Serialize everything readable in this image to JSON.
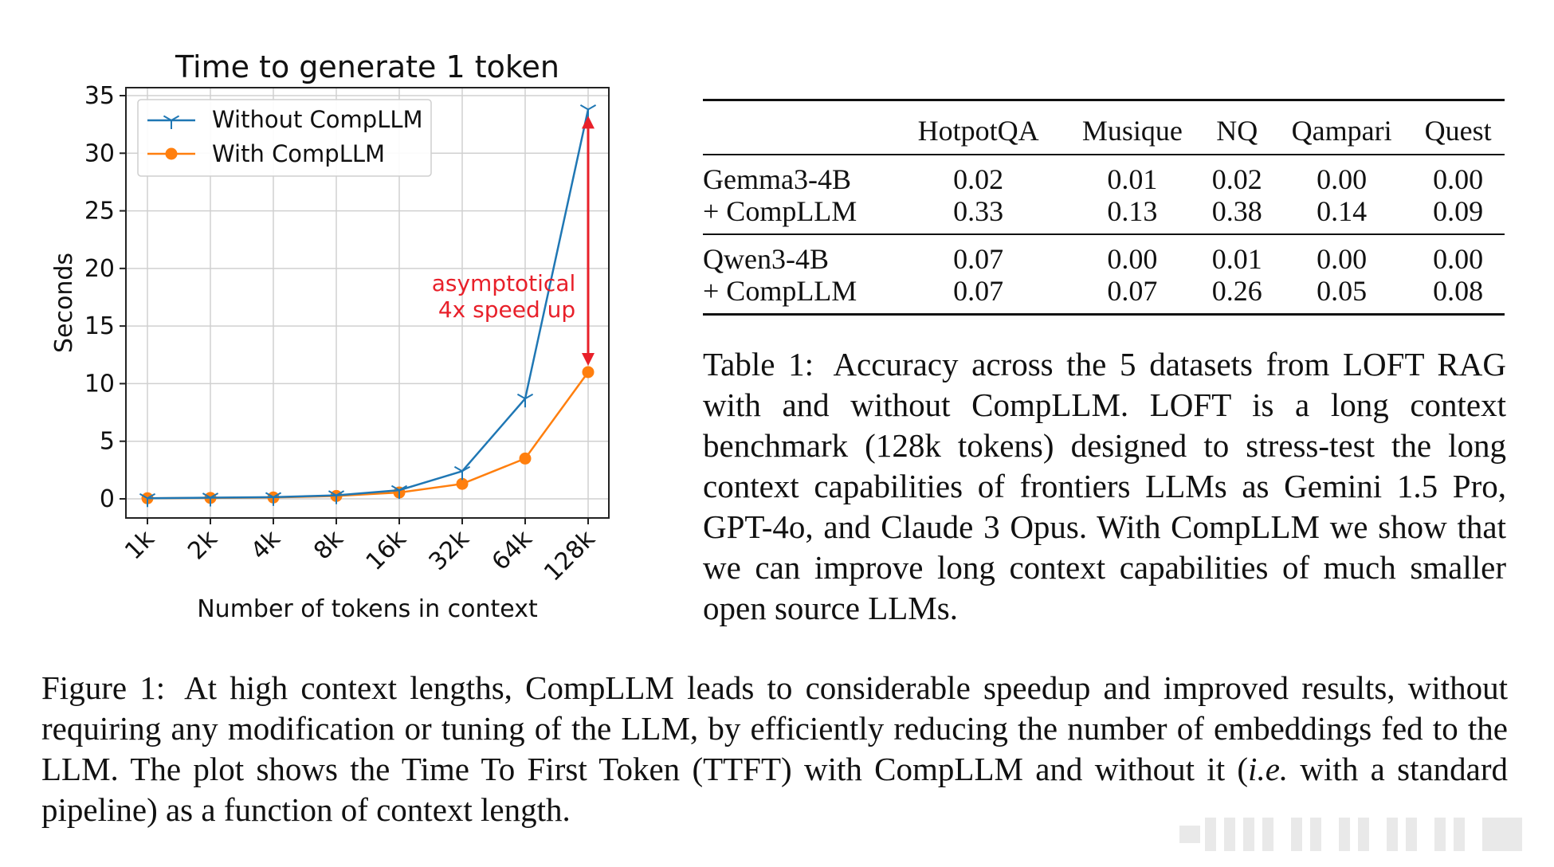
{
  "chart_data": {
    "type": "line",
    "title": "Time to generate 1 token",
    "xlabel": "Number of tokens in context",
    "ylabel": "Seconds",
    "categories": [
      "1k",
      "2k",
      "4k",
      "8k",
      "16k",
      "32k",
      "64k",
      "128k"
    ],
    "ylim": [
      0,
      35
    ],
    "yticks": [
      0,
      5,
      10,
      15,
      20,
      25,
      30,
      35
    ],
    "grid": true,
    "legend_position": "top-left",
    "series": [
      {
        "name": "Without CompLLM",
        "color": "#1f77b4",
        "marker": "tri",
        "values": [
          0.05,
          0.1,
          0.15,
          0.3,
          0.75,
          2.4,
          8.7,
          33.8
        ]
      },
      {
        "name": "With CompLLM",
        "color": "#ff7f0e",
        "marker": "circle",
        "values": [
          0.05,
          0.08,
          0.12,
          0.25,
          0.55,
          1.3,
          3.5,
          11.0
        ]
      }
    ],
    "annotation": {
      "lines": [
        "asymptotical",
        "4x speed up"
      ],
      "color": "#e8202a",
      "arrow_from": 11.0,
      "arrow_to": 33.8,
      "at_category": "128k"
    }
  },
  "table": {
    "columns": [
      "HotpotQA",
      "Musique",
      "NQ",
      "Qampari",
      "Quest"
    ],
    "groups": [
      {
        "rows": [
          {
            "model": "Gemma3-4B",
            "values": [
              "0.02",
              "0.01",
              "0.02",
              "0.00",
              "0.00"
            ]
          },
          {
            "model": "+ CompLLM",
            "values": [
              "0.33",
              "0.13",
              "0.38",
              "0.14",
              "0.09"
            ]
          }
        ]
      },
      {
        "rows": [
          {
            "model": "Qwen3-4B",
            "values": [
              "0.07",
              "0.00",
              "0.01",
              "0.00",
              "0.00"
            ]
          },
          {
            "model": "+ CompLLM",
            "values": [
              "0.07",
              "0.07",
              "0.26",
              "0.05",
              "0.08"
            ]
          }
        ]
      }
    ]
  },
  "table_caption": {
    "label": "Table 1:",
    "text": "Accuracy across the 5 datasets from LOFT RAG with and without CompLLM. LOFT is a long context benchmark (128k tokens) designed to stress-test the long context capabilities of frontiers LLMs as Gemini 1.5 Pro, GPT-4o, and Claude 3 Opus.  With CompLLM we show that we can improve long context capabilities of much smaller open source LLMs."
  },
  "figure_caption": {
    "label": "Figure 1:",
    "text_before": "At high context lengths, CompLLM leads to considerable speedup and improved results, without requiring any modification or tuning of the LLM, by efficiently reducing the number of embeddings fed to the LLM. The plot shows the Time To First Token (TTFT) with CompLLM and without it (",
    "italic": "i.e.",
    "text_after": " with a standard pipeline) as a function of context length."
  }
}
